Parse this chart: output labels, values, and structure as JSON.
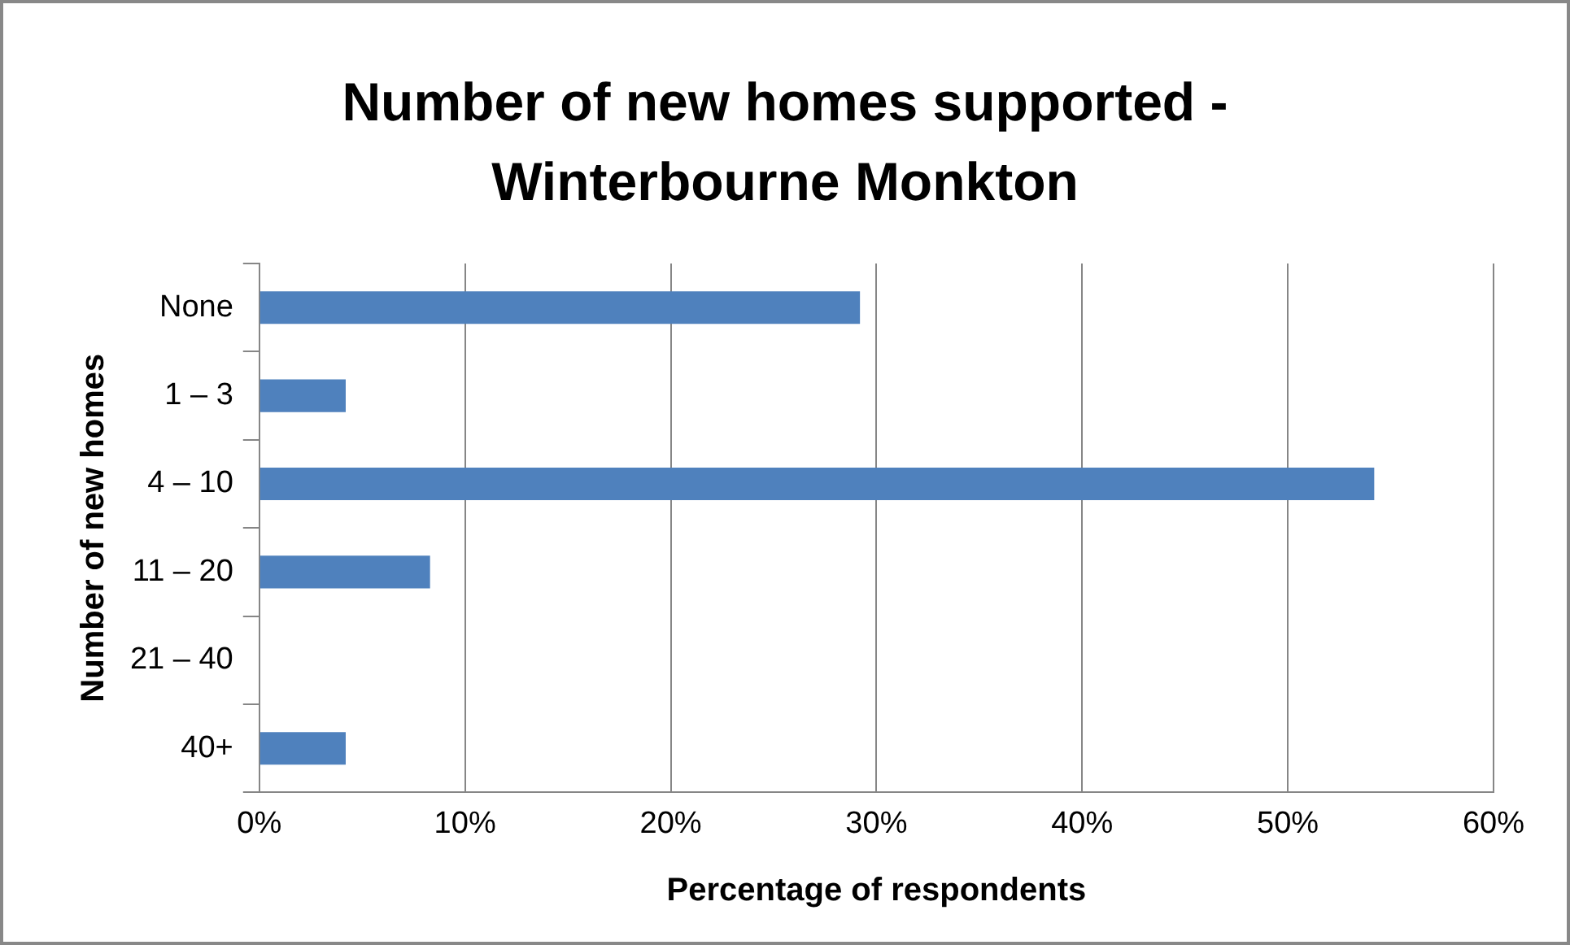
{
  "chart_data": {
    "type": "bar",
    "orientation": "horizontal",
    "title": "Number of new homes supported - Winterbourne Monkton",
    "xlabel": "Percentage of respondents",
    "ylabel": "Number of new homes",
    "categories": [
      "None",
      "1 – 3",
      "4 – 10",
      "11 – 20",
      "21 – 40",
      "40+"
    ],
    "values": [
      29.2,
      4.2,
      54.2,
      8.3,
      0,
      4.2
    ],
    "color": "#4f81bd",
    "xlim": [
      0,
      60
    ],
    "xticks": [
      {
        "value": 0,
        "label": "0%"
      },
      {
        "value": 10,
        "label": "10%"
      },
      {
        "value": 20,
        "label": "20%"
      },
      {
        "value": 30,
        "label": "30%"
      },
      {
        "value": 40,
        "label": "40%"
      },
      {
        "value": 50,
        "label": "50%"
      },
      {
        "value": 60,
        "label": "60%"
      }
    ],
    "grid": "x",
    "legend": false
  }
}
